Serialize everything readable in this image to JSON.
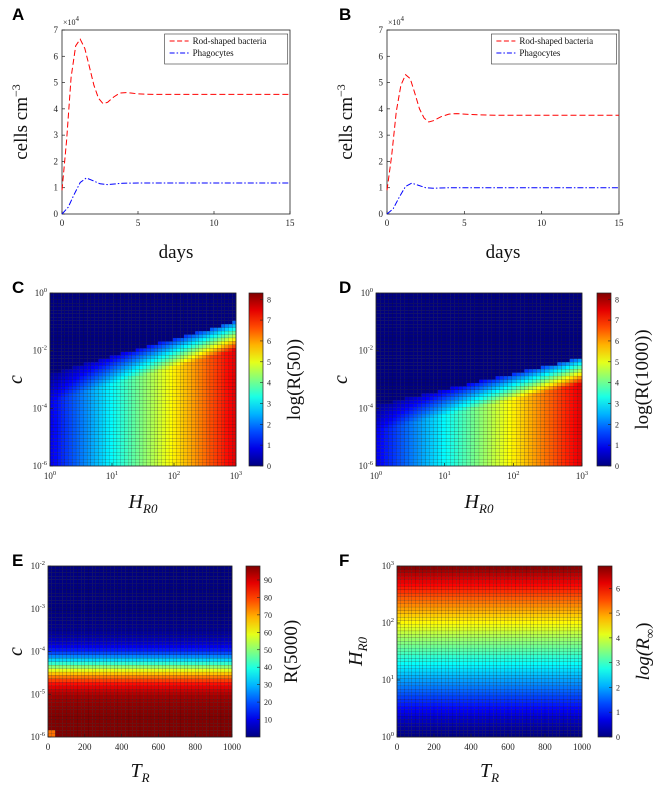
{
  "chart_data": [
    {
      "panel": "A",
      "type": "line",
      "ylabel": "cells cm",
      "ylabel_sup": "−3",
      "xlabel": "days",
      "multiplier": "×10",
      "multiplier_exp": "4",
      "xlim": [
        0,
        15
      ],
      "ylim": [
        0,
        7
      ],
      "xticks": [
        0,
        5,
        10,
        15
      ],
      "yticks": [
        0,
        1,
        2,
        3,
        4,
        5,
        6,
        7
      ],
      "series": [
        {
          "name": "Rod-shaped bacteria",
          "color": "#ff0000",
          "dash": "dashed",
          "x": [
            0,
            0.3,
            0.6,
            0.9,
            1.2,
            1.5,
            1.8,
            2.1,
            2.4,
            2.7,
            3.0,
            3.4,
            3.8,
            4.2,
            4.6,
            5.0,
            6,
            7,
            8,
            10,
            12,
            15
          ],
          "y": [
            0.9,
            2.8,
            5.2,
            6.4,
            6.65,
            6.3,
            5.6,
            4.9,
            4.4,
            4.2,
            4.25,
            4.45,
            4.6,
            4.62,
            4.6,
            4.57,
            4.55,
            4.55,
            4.55,
            4.55,
            4.55,
            4.55
          ]
        },
        {
          "name": "Phagocytes",
          "color": "#0000ff",
          "dash": "dashdot",
          "x": [
            0,
            0.4,
            0.8,
            1.2,
            1.6,
            2.0,
            2.5,
            3.0,
            4.0,
            5.0,
            7,
            10,
            15
          ],
          "y": [
            0,
            0.25,
            0.75,
            1.2,
            1.37,
            1.28,
            1.15,
            1.12,
            1.17,
            1.18,
            1.18,
            1.18,
            1.18
          ]
        }
      ]
    },
    {
      "panel": "B",
      "type": "line",
      "ylabel": "cells cm",
      "ylabel_sup": "−3",
      "xlabel": "days",
      "multiplier": "×10",
      "multiplier_exp": "4",
      "xlim": [
        0,
        15
      ],
      "ylim": [
        0,
        7
      ],
      "xticks": [
        0,
        5,
        10,
        15
      ],
      "yticks": [
        0,
        1,
        2,
        3,
        4,
        5,
        6,
        7
      ],
      "series": [
        {
          "name": "Rod-shaped bacteria",
          "color": "#ff0000",
          "dash": "dashed",
          "x": [
            0,
            0.3,
            0.6,
            0.9,
            1.2,
            1.5,
            1.8,
            2.1,
            2.4,
            2.7,
            3.0,
            3.5,
            4.0,
            4.5,
            5.0,
            6,
            7,
            8,
            10,
            12,
            15
          ],
          "y": [
            0.9,
            2.2,
            3.9,
            4.9,
            5.3,
            5.15,
            4.6,
            4.0,
            3.65,
            3.5,
            3.55,
            3.7,
            3.8,
            3.82,
            3.8,
            3.77,
            3.76,
            3.76,
            3.76,
            3.76,
            3.76
          ]
        },
        {
          "name": "Phagocytes",
          "color": "#0000ff",
          "dash": "dashdot",
          "x": [
            0,
            0.4,
            0.8,
            1.2,
            1.6,
            2.0,
            2.5,
            3.0,
            4.0,
            5.0,
            7,
            10,
            15
          ],
          "y": [
            0,
            0.2,
            0.65,
            1.05,
            1.17,
            1.1,
            1.0,
            0.98,
            1.0,
            1.0,
            1.0,
            1.0,
            1.0
          ]
        }
      ]
    },
    {
      "panel": "C",
      "type": "heatmap",
      "xlabel": "H",
      "xlabel_sub": "R0",
      "ylabel": "c",
      "clabel": "log(R(50))",
      "x_scale": "log",
      "xlim": [
        1,
        1000
      ],
      "y_scale": "log",
      "ylim": [
        1e-06,
        1
      ],
      "x_ticks": [
        {
          "b": "10",
          "e": "0"
        },
        {
          "b": "10",
          "e": "1"
        },
        {
          "b": "10",
          "e": "2"
        },
        {
          "b": "10",
          "e": "3"
        }
      ],
      "y_ticks": [
        {
          "b": "10",
          "e": "0"
        },
        {
          "b": "10",
          "e": "-2"
        },
        {
          "b": "10",
          "e": "-4"
        },
        {
          "b": "10",
          "e": "-6"
        }
      ],
      "clim": [
        0,
        8.3
      ],
      "cticks": [
        "0",
        "1",
        "2",
        "3",
        "4",
        "5",
        "6",
        "7",
        "8"
      ]
    },
    {
      "panel": "D",
      "type": "heatmap",
      "xlabel": "H",
      "xlabel_sub": "R0",
      "ylabel": "c",
      "clabel": "log(R(1000))",
      "x_scale": "log",
      "xlim": [
        1,
        1000
      ],
      "y_scale": "log",
      "ylim": [
        1e-06,
        1
      ],
      "x_ticks": [
        {
          "b": "10",
          "e": "0"
        },
        {
          "b": "10",
          "e": "1"
        },
        {
          "b": "10",
          "e": "2"
        },
        {
          "b": "10",
          "e": "3"
        }
      ],
      "y_ticks": [
        {
          "b": "10",
          "e": "0"
        },
        {
          "b": "10",
          "e": "-2"
        },
        {
          "b": "10",
          "e": "-4"
        },
        {
          "b": "10",
          "e": "-6"
        }
      ],
      "clim": [
        0,
        8.3
      ],
      "cticks": [
        "0",
        "1",
        "2",
        "3",
        "4",
        "5",
        "6",
        "7",
        "8"
      ]
    },
    {
      "panel": "E",
      "type": "heatmap",
      "xlabel": "T",
      "xlabel_sub": "R",
      "ylabel": "c",
      "clabel": "R(5000)",
      "x_scale": "linear",
      "xlim": [
        0,
        1000
      ],
      "y_scale": "log",
      "ylim": [
        1e-06,
        0.01
      ],
      "x_ticks": [
        {
          "b": "0"
        },
        {
          "b": "200"
        },
        {
          "b": "400"
        },
        {
          "b": "600"
        },
        {
          "b": "800"
        },
        {
          "b": "1000"
        }
      ],
      "y_ticks": [
        {
          "b": "10",
          "e": "-2"
        },
        {
          "b": "10",
          "e": "-3"
        },
        {
          "b": "10",
          "e": "-4"
        },
        {
          "b": "10",
          "e": "-5"
        },
        {
          "b": "10",
          "e": "-6"
        }
      ],
      "clim": [
        0,
        98
      ],
      "cticks": [
        "10",
        "20",
        "30",
        "40",
        "50",
        "60",
        "70",
        "80",
        "90"
      ]
    },
    {
      "panel": "F",
      "type": "heatmap",
      "xlabel": "T",
      "xlabel_sub": "R",
      "ylabel": "H",
      "ylabel_sub": "R0",
      "clabel": "log(R",
      "clabel_sub": "∞",
      "clabel_end": ")",
      "x_scale": "linear",
      "xlim": [
        0,
        1000
      ],
      "y_scale": "log",
      "ylim": [
        1,
        1000
      ],
      "x_ticks": [
        {
          "b": "0"
        },
        {
          "b": "200"
        },
        {
          "b": "400"
        },
        {
          "b": "600"
        },
        {
          "b": "800"
        },
        {
          "b": "1000"
        }
      ],
      "y_ticks": [
        {
          "b": "10",
          "e": "3"
        },
        {
          "b": "10",
          "e": "2"
        },
        {
          "b": "10",
          "e": "1"
        },
        {
          "b": "10",
          "e": "0"
        }
      ],
      "clim": [
        0,
        6.9
      ],
      "cticks": [
        "0",
        "1",
        "2",
        "3",
        "4",
        "5",
        "6"
      ]
    }
  ]
}
